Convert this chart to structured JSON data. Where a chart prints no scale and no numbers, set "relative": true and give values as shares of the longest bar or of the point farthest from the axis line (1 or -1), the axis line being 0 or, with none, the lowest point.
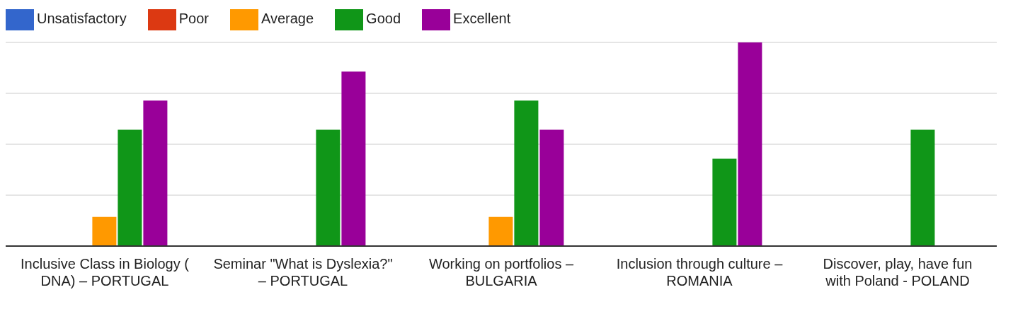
{
  "chart_data": {
    "type": "bar",
    "relative": true,
    "grid": "y",
    "legend": "top left",
    "categories": [
      "Inclusive Class in Biology ( DNA) – PORTUGAL",
      "Seminar \"What is Dyslexia?\" – PORTUGAL",
      "Working on portfolios – BULGARIA",
      "Inclusion through culture – ROMANIA",
      "Discover, play, have fun with Poland - POLAND"
    ],
    "series": [
      {
        "name": "Unsatisfactory",
        "color": "#3366cc",
        "values": [
          0,
          0,
          0,
          0,
          0
        ]
      },
      {
        "name": "Poor",
        "color": "#dc3912",
        "values": [
          0,
          0,
          0,
          0,
          0
        ]
      },
      {
        "name": "Average",
        "color": "#ff9900",
        "values": [
          0.143,
          0,
          0.143,
          0,
          0
        ]
      },
      {
        "name": "Good",
        "color": "#109618",
        "values": [
          0.571,
          0.571,
          0.714,
          0.429,
          0.571
        ]
      },
      {
        "name": "Excellent",
        "color": "#990099",
        "values": [
          0.714,
          0.857,
          0.571,
          1,
          null
        ]
      }
    ]
  }
}
